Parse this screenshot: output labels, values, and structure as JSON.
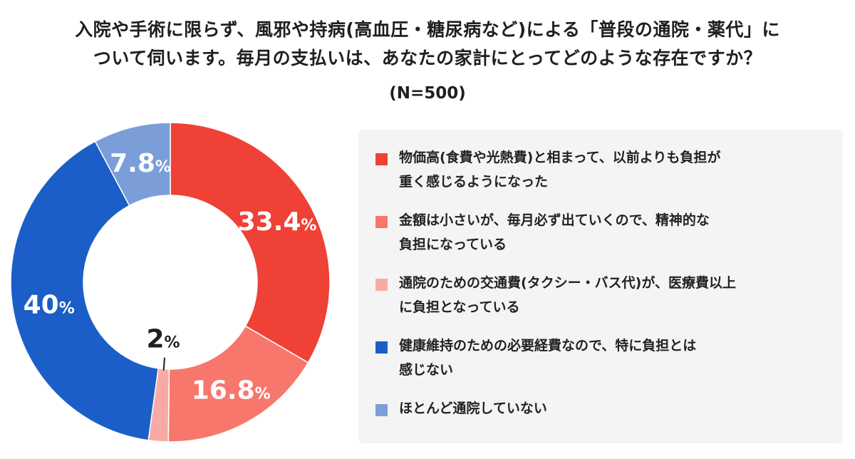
{
  "title_lines": [
    "入院や手術に限らず、風邪や持病(高血圧・糖尿病など)による「普段の通院・薬代」に",
    "ついて伺います。毎月の支払いは、あなたの家計にとってどのような存在ですか？"
  ],
  "subtitle": "(N=500)",
  "chart_data": {
    "type": "pie",
    "title": "入院や手術に限らず、風邪や持病(高血圧・糖尿病など)による「普段の通院・薬代」について伺います。毎月の支払いは、あなたの家計にとってどのような存在ですか？",
    "subtitle": "(N=500)",
    "donut": true,
    "legend_position": "right",
    "slices": [
      {
        "label": "物価高(食費や光熱費)と相まって、以前よりも負担が重く感じるようになった",
        "value": 33.4,
        "display": "33.4",
        "color": "#ef4136"
      },
      {
        "label": "金額は小さいが、毎月必ず出ていくので、精神的な負担になっている",
        "value": 16.8,
        "display": "16.8",
        "color": "#f7776d"
      },
      {
        "label": "通院のための交通費(タクシー・バス代)が、医療費以上に負担となっている",
        "value": 2,
        "display": "2",
        "color": "#f9aaa4"
      },
      {
        "label": "健康維持のための必要経費なので、特に負担とは感じない",
        "value": 40,
        "display": "40",
        "color": "#1b5ec8"
      },
      {
        "label": "ほとんど通院していない",
        "value": 7.8,
        "display": "7.8",
        "color": "#7b9ed9"
      }
    ],
    "unit": "%"
  },
  "legend_lines": [
    [
      "物価高(食費や光熱費)と相まって、以前よりも負担が",
      "重く感じるようになった"
    ],
    [
      "金額は小さいが、毎月必ず出ていくので、精神的な",
      "負担になっている"
    ],
    [
      "通院のための交通費(タクシー・バス代)が、医療費以上",
      "に負担となっている"
    ],
    [
      "健康維持のための必要経費なので、特に負担とは",
      "感じない"
    ],
    [
      "ほとんど通院していない"
    ]
  ]
}
